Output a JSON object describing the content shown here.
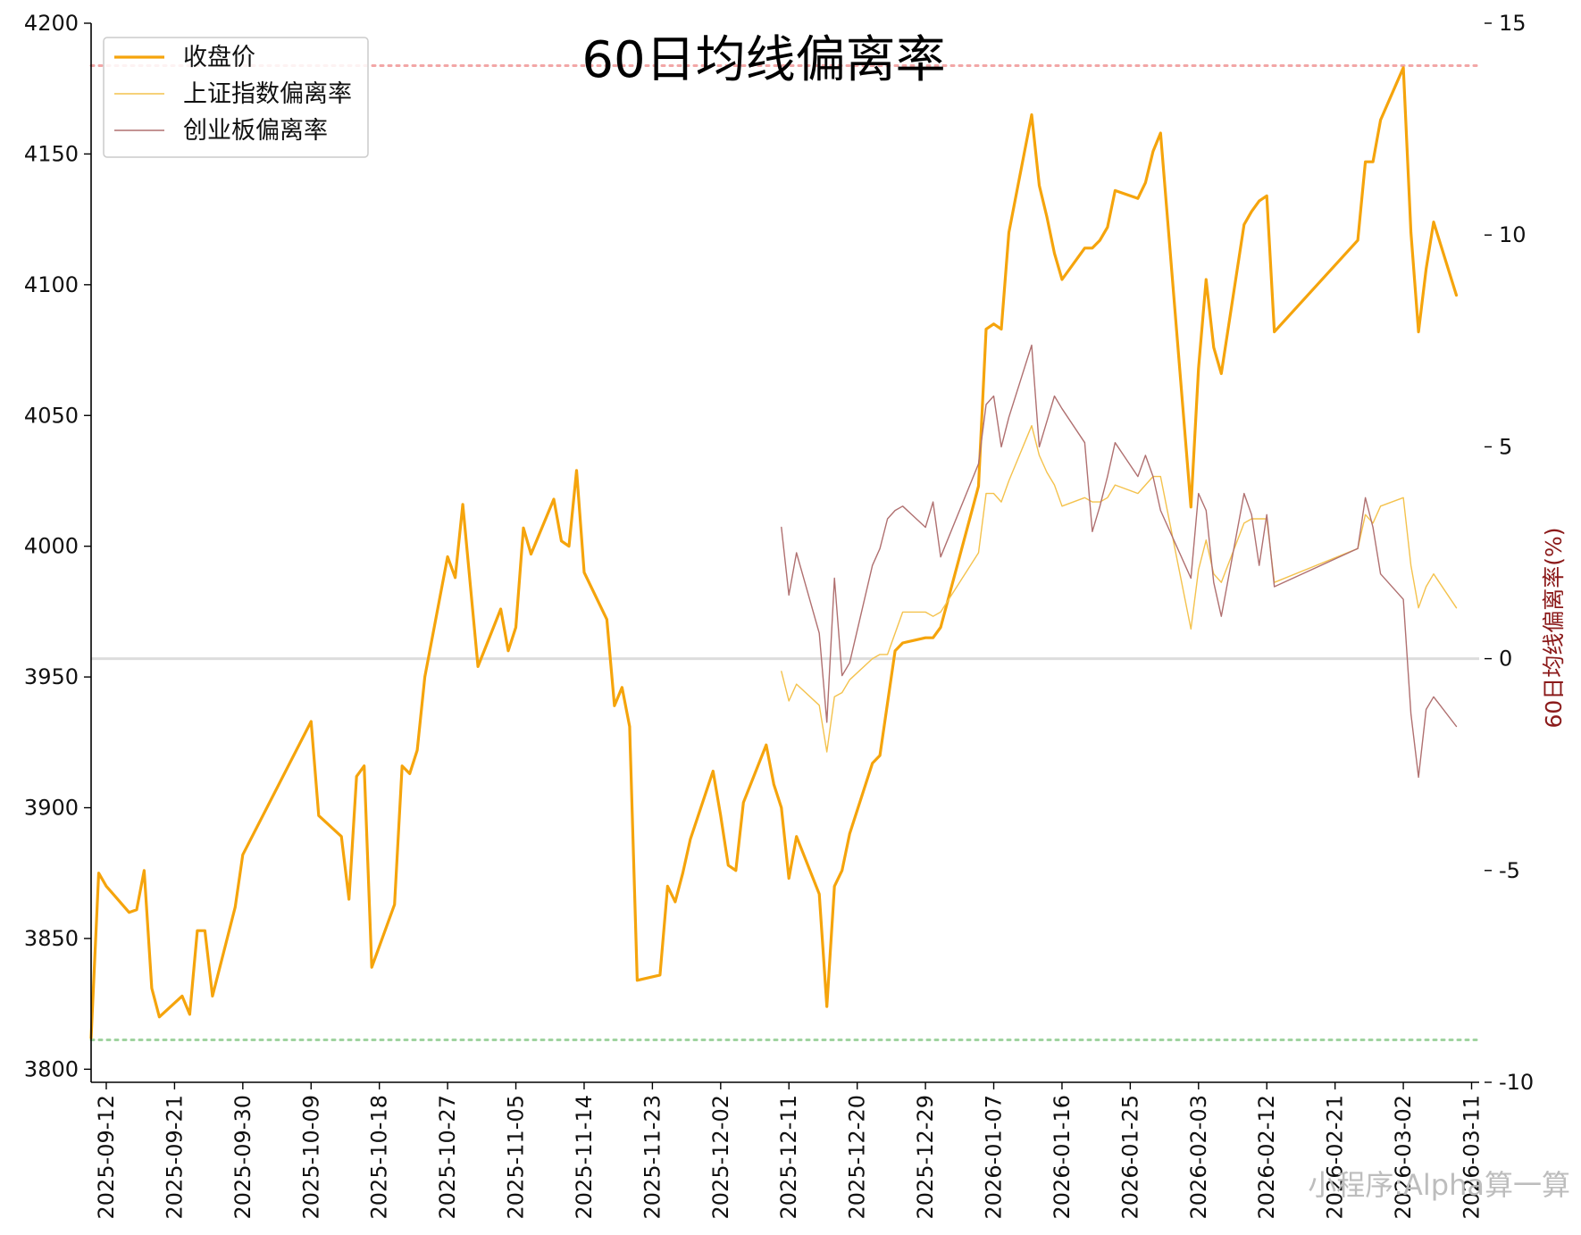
{
  "chart_data": {
    "type": "line",
    "title": "60日均线偏离率",
    "ylabel_left": "",
    "ylabel_right": "60日均线偏离率(%)",
    "ylim_left": [
      3795,
      4200
    ],
    "ylim_right": [
      -10,
      15
    ],
    "yticks_left": [
      3800,
      3850,
      3900,
      3950,
      4000,
      4050,
      4100,
      4150,
      4200
    ],
    "yticks_right": [
      -10,
      -5,
      0,
      5,
      10,
      15
    ],
    "xlim": [
      "2025-09-10",
      "2026-03-12"
    ],
    "xticks": [
      "2025-09-12",
      "2025-09-21",
      "2025-09-30",
      "2025-10-09",
      "2025-10-18",
      "2025-10-27",
      "2025-11-05",
      "2025-11-14",
      "2025-11-23",
      "2025-12-02",
      "2025-12-11",
      "2025-12-20",
      "2025-12-29",
      "2026-01-07",
      "2026-01-16",
      "2026-01-25",
      "2026-02-03",
      "2026-02-12",
      "2026-02-21",
      "2026-03-02",
      "2026-03-11"
    ],
    "legend": {
      "position": "top-left"
    },
    "reference_lines": [
      {
        "axis": "right",
        "value": 14,
        "color": "#f2a6a6",
        "style": "dotted"
      },
      {
        "axis": "right",
        "value": -9,
        "color": "#9fd39f",
        "style": "dotted"
      },
      {
        "axis": "right",
        "value": 0,
        "color": "#dddddd",
        "style": "solid"
      }
    ],
    "series": [
      {
        "name": "收盘价",
        "axis": "left",
        "color": "#f5a40c",
        "width": 3.2,
        "points": [
          [
            "2025-09-10",
            3812
          ],
          [
            "2025-09-11",
            3875
          ],
          [
            "2025-09-12",
            3870
          ],
          [
            "2025-09-15",
            3860
          ],
          [
            "2025-09-16",
            3861
          ],
          [
            "2025-09-17",
            3876
          ],
          [
            "2025-09-18",
            3831
          ],
          [
            "2025-09-19",
            3820
          ],
          [
            "2025-09-22",
            3828
          ],
          [
            "2025-09-23",
            3821
          ],
          [
            "2025-09-24",
            3853
          ],
          [
            "2025-09-25",
            3853
          ],
          [
            "2025-09-26",
            3828
          ],
          [
            "2025-09-29",
            3862
          ],
          [
            "2025-09-30",
            3882
          ],
          [
            "2025-10-09",
            3933
          ],
          [
            "2025-10-10",
            3897
          ],
          [
            "2025-10-13",
            3889
          ],
          [
            "2025-10-14",
            3865
          ],
          [
            "2025-10-15",
            3912
          ],
          [
            "2025-10-16",
            3916
          ],
          [
            "2025-10-17",
            3839
          ],
          [
            "2025-10-20",
            3863
          ],
          [
            "2025-10-21",
            3916
          ],
          [
            "2025-10-22",
            3913
          ],
          [
            "2025-10-23",
            3922
          ],
          [
            "2025-10-24",
            3950
          ],
          [
            "2025-10-27",
            3996
          ],
          [
            "2025-10-28",
            3988
          ],
          [
            "2025-10-29",
            4016
          ],
          [
            "2025-10-31",
            3954
          ],
          [
            "2025-11-03",
            3976
          ],
          [
            "2025-11-04",
            3960
          ],
          [
            "2025-11-05",
            3969
          ],
          [
            "2025-11-06",
            4007
          ],
          [
            "2025-11-07",
            3997
          ],
          [
            "2025-11-10",
            4018
          ],
          [
            "2025-11-11",
            4002
          ],
          [
            "2025-11-12",
            4000
          ],
          [
            "2025-11-13",
            4029
          ],
          [
            "2025-11-14",
            3990
          ],
          [
            "2025-11-17",
            3972
          ],
          [
            "2025-11-18",
            3939
          ],
          [
            "2025-11-19",
            3946
          ],
          [
            "2025-11-20",
            3931
          ],
          [
            "2025-11-21",
            3834
          ],
          [
            "2025-11-24",
            3836
          ],
          [
            "2025-11-25",
            3870
          ],
          [
            "2025-11-26",
            3864
          ],
          [
            "2025-11-27",
            3875
          ],
          [
            "2025-11-28",
            3888
          ],
          [
            "2025-12-01",
            3914
          ],
          [
            "2025-12-02",
            3897
          ],
          [
            "2025-12-03",
            3878
          ],
          [
            "2025-12-04",
            3876
          ],
          [
            "2025-12-05",
            3902
          ],
          [
            "2025-12-08",
            3924
          ],
          [
            "2025-12-09",
            3909
          ],
          [
            "2025-12-10",
            3900
          ],
          [
            "2025-12-11",
            3873
          ],
          [
            "2025-12-12",
            3889
          ],
          [
            "2025-12-15",
            3867
          ],
          [
            "2025-12-16",
            3824
          ],
          [
            "2025-12-17",
            3870
          ],
          [
            "2025-12-18",
            3876
          ],
          [
            "2025-12-19",
            3890
          ],
          [
            "2025-12-22",
            3917
          ],
          [
            "2025-12-23",
            3920
          ],
          [
            "2025-12-24",
            3940
          ],
          [
            "2025-12-25",
            3960
          ],
          [
            "2025-12-26",
            3963
          ],
          [
            "2025-12-29",
            3965
          ],
          [
            "2025-12-30",
            3965
          ],
          [
            "2025-12-31",
            3969
          ],
          [
            "2026-01-05",
            4023
          ],
          [
            "2026-01-06",
            4083
          ],
          [
            "2026-01-07",
            4085
          ],
          [
            "2026-01-08",
            4083
          ],
          [
            "2026-01-09",
            4120
          ],
          [
            "2026-01-12",
            4165
          ],
          [
            "2026-01-13",
            4138
          ],
          [
            "2026-01-14",
            4126
          ],
          [
            "2026-01-15",
            4112
          ],
          [
            "2026-01-16",
            4102
          ],
          [
            "2026-01-19",
            4114
          ],
          [
            "2026-01-20",
            4114
          ],
          [
            "2026-01-21",
            4117
          ],
          [
            "2026-01-22",
            4122
          ],
          [
            "2026-01-23",
            4136
          ],
          [
            "2026-01-26",
            4133
          ],
          [
            "2026-01-27",
            4139
          ],
          [
            "2026-01-28",
            4151
          ],
          [
            "2026-01-29",
            4158
          ],
          [
            "2026-02-02",
            4015
          ],
          [
            "2026-02-03",
            4068
          ],
          [
            "2026-02-04",
            4102
          ],
          [
            "2026-02-05",
            4076
          ],
          [
            "2026-02-06",
            4066
          ],
          [
            "2026-02-09",
            4123
          ],
          [
            "2026-02-10",
            4128
          ],
          [
            "2026-02-11",
            4132
          ],
          [
            "2026-02-12",
            4134
          ],
          [
            "2026-02-13",
            4082
          ],
          [
            "2026-02-24",
            4117
          ],
          [
            "2026-02-25",
            4147
          ],
          [
            "2026-02-26",
            4147
          ],
          [
            "2026-02-27",
            4163
          ],
          [
            "2026-03-02",
            4183
          ],
          [
            "2026-03-03",
            4120
          ],
          [
            "2026-03-04",
            4082
          ],
          [
            "2026-03-05",
            4106
          ],
          [
            "2026-03-06",
            4124
          ],
          [
            "2026-03-09",
            4096
          ]
        ]
      },
      {
        "name": "上证指数偏离率",
        "axis": "right",
        "color": "#f4c24d",
        "width": 1.4,
        "points": [
          [
            "2025-12-10",
            -0.3
          ],
          [
            "2025-12-11",
            -1.0
          ],
          [
            "2025-12-12",
            -0.6
          ],
          [
            "2025-12-15",
            -1.1
          ],
          [
            "2025-12-16",
            -2.2
          ],
          [
            "2025-12-17",
            -0.9
          ],
          [
            "2025-12-18",
            -0.8
          ],
          [
            "2025-12-19",
            -0.5
          ],
          [
            "2025-12-22",
            0.0
          ],
          [
            "2025-12-23",
            0.1
          ],
          [
            "2025-12-24",
            0.1
          ],
          [
            "2025-12-25",
            0.6
          ],
          [
            "2025-12-26",
            1.1
          ],
          [
            "2025-12-29",
            1.1
          ],
          [
            "2025-12-30",
            1.0
          ],
          [
            "2025-12-31",
            1.1
          ],
          [
            "2026-01-05",
            2.5
          ],
          [
            "2026-01-06",
            3.9
          ],
          [
            "2026-01-07",
            3.9
          ],
          [
            "2026-01-08",
            3.7
          ],
          [
            "2026-01-09",
            4.2
          ],
          [
            "2026-01-12",
            5.5
          ],
          [
            "2026-01-13",
            4.8
          ],
          [
            "2026-01-14",
            4.4
          ],
          [
            "2026-01-15",
            4.1
          ],
          [
            "2026-01-16",
            3.6
          ],
          [
            "2026-01-19",
            3.8
          ],
          [
            "2026-01-20",
            3.7
          ],
          [
            "2026-01-21",
            3.7
          ],
          [
            "2026-01-22",
            3.8
          ],
          [
            "2026-01-23",
            4.1
          ],
          [
            "2026-01-26",
            3.9
          ],
          [
            "2026-01-27",
            4.1
          ],
          [
            "2026-01-28",
            4.3
          ],
          [
            "2026-01-29",
            4.3
          ],
          [
            "2026-02-02",
            0.7
          ],
          [
            "2026-02-03",
            2.1
          ],
          [
            "2026-02-04",
            2.8
          ],
          [
            "2026-02-05",
            2.0
          ],
          [
            "2026-02-06",
            1.8
          ],
          [
            "2026-02-09",
            3.2
          ],
          [
            "2026-02-10",
            3.3
          ],
          [
            "2026-02-11",
            3.3
          ],
          [
            "2026-02-12",
            3.3
          ],
          [
            "2026-02-13",
            1.8
          ],
          [
            "2026-02-24",
            2.6
          ],
          [
            "2026-02-25",
            3.4
          ],
          [
            "2026-02-26",
            3.2
          ],
          [
            "2026-02-27",
            3.6
          ],
          [
            "2026-03-02",
            3.8
          ],
          [
            "2026-03-03",
            2.2
          ],
          [
            "2026-03-04",
            1.2
          ],
          [
            "2026-03-05",
            1.7
          ],
          [
            "2026-03-06",
            2.0
          ],
          [
            "2026-03-09",
            1.2
          ]
        ]
      },
      {
        "name": "创业板偏离率",
        "axis": "right",
        "color": "#b07070",
        "width": 1.4,
        "points": [
          [
            "2025-12-10",
            3.1
          ],
          [
            "2025-12-11",
            1.5
          ],
          [
            "2025-12-12",
            2.5
          ],
          [
            "2025-12-15",
            0.6
          ],
          [
            "2025-12-16",
            -1.5
          ],
          [
            "2025-12-17",
            1.9
          ],
          [
            "2025-12-18",
            -0.4
          ],
          [
            "2025-12-19",
            -0.1
          ],
          [
            "2025-12-22",
            2.2
          ],
          [
            "2025-12-23",
            2.6
          ],
          [
            "2025-12-24",
            3.3
          ],
          [
            "2025-12-25",
            3.5
          ],
          [
            "2025-12-26",
            3.6
          ],
          [
            "2025-12-29",
            3.1
          ],
          [
            "2025-12-30",
            3.7
          ],
          [
            "2025-12-31",
            2.4
          ],
          [
            "2026-01-05",
            4.6
          ],
          [
            "2026-01-06",
            6.0
          ],
          [
            "2026-01-07",
            6.2
          ],
          [
            "2026-01-08",
            5.0
          ],
          [
            "2026-01-09",
            5.7
          ],
          [
            "2026-01-12",
            7.4
          ],
          [
            "2026-01-13",
            5.0
          ],
          [
            "2026-01-14",
            5.6
          ],
          [
            "2026-01-15",
            6.2
          ],
          [
            "2026-01-16",
            5.9
          ],
          [
            "2026-01-19",
            5.1
          ],
          [
            "2026-01-20",
            3.0
          ],
          [
            "2026-01-21",
            3.6
          ],
          [
            "2026-01-22",
            4.3
          ],
          [
            "2026-01-23",
            5.1
          ],
          [
            "2026-01-26",
            4.3
          ],
          [
            "2026-01-27",
            4.8
          ],
          [
            "2026-01-28",
            4.3
          ],
          [
            "2026-01-29",
            3.5
          ],
          [
            "2026-02-02",
            1.9
          ],
          [
            "2026-02-03",
            3.9
          ],
          [
            "2026-02-04",
            3.5
          ],
          [
            "2026-02-05",
            1.8
          ],
          [
            "2026-02-06",
            1.0
          ],
          [
            "2026-02-09",
            3.9
          ],
          [
            "2026-02-10",
            3.4
          ],
          [
            "2026-02-11",
            2.2
          ],
          [
            "2026-02-12",
            3.4
          ],
          [
            "2026-02-13",
            1.7
          ],
          [
            "2026-02-24",
            2.6
          ],
          [
            "2026-02-25",
            3.8
          ],
          [
            "2026-02-26",
            3.1
          ],
          [
            "2026-02-27",
            2.0
          ],
          [
            "2026-03-02",
            1.4
          ],
          [
            "2026-03-03",
            -1.3
          ],
          [
            "2026-03-04",
            -2.8
          ],
          [
            "2026-03-05",
            -1.2
          ],
          [
            "2026-03-06",
            -0.9
          ],
          [
            "2026-03-09",
            -1.6
          ]
        ]
      }
    ]
  },
  "watermark": "小程序:Alpha算一算"
}
